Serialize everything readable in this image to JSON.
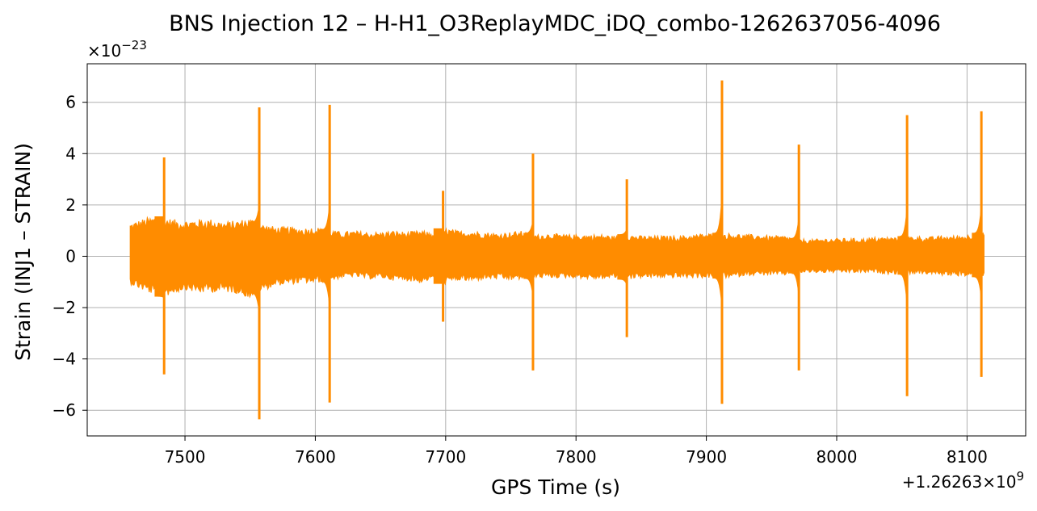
{
  "chart_data": {
    "type": "line",
    "title": "BNS Injection 12 – H-H1_O3ReplayMDC_iDQ_combo-1262637056-4096",
    "xlabel": "GPS Time (s)",
    "ylabel": "Strain (INJ1 – STRAIN)",
    "x_offset_label": "+1.26263×10^9",
    "y_scale_label": "×10^−23",
    "xlim": [
      7425,
      8145
    ],
    "ylim": [
      -7.0,
      7.5
    ],
    "xticks": [
      7500,
      7600,
      7700,
      7800,
      7900,
      8000,
      8100
    ],
    "xtick_labels": [
      "7500",
      "7600",
      "7700",
      "7800",
      "7900",
      "8000",
      "8100"
    ],
    "yticks": [
      -6,
      -4,
      -2,
      0,
      2,
      4,
      6
    ],
    "ytick_labels": [
      "−6",
      "−4",
      "−2",
      "0",
      "2",
      "4",
      "6"
    ],
    "grid": true,
    "series_color": "#ff8c00",
    "x_range": [
      7458,
      8113
    ],
    "envelope": {
      "x": [
        7458,
        7470,
        7480,
        7490,
        7500,
        7510,
        7520,
        7530,
        7540,
        7550,
        7560,
        7570,
        7580,
        7590,
        7600,
        7610,
        7620,
        7630,
        7640,
        7650,
        7660,
        7670,
        7680,
        7690,
        7700,
        7710,
        7720,
        7730,
        7740,
        7750,
        7760,
        7770,
        7780,
        7790,
        7800,
        7810,
        7820,
        7830,
        7840,
        7850,
        7860,
        7870,
        7880,
        7890,
        7900,
        7910,
        7920,
        7930,
        7940,
        7950,
        7960,
        7970,
        7980,
        7990,
        8000,
        8010,
        8020,
        8030,
        8040,
        8050,
        8060,
        8070,
        8080,
        8090,
        8100,
        8110,
        8113
      ],
      "upper": [
        1.3,
        1.5,
        1.6,
        1.45,
        1.4,
        1.45,
        1.45,
        1.35,
        1.4,
        1.5,
        1.25,
        1.15,
        1.15,
        1.1,
        1.15,
        1.05,
        0.95,
        1.0,
        0.95,
        0.95,
        1.0,
        0.95,
        1.0,
        0.95,
        1.1,
        1.0,
        1.0,
        0.95,
        0.9,
        0.95,
        1.0,
        0.85,
        0.9,
        0.85,
        0.85,
        0.85,
        0.85,
        0.8,
        0.85,
        0.8,
        0.8,
        0.8,
        0.8,
        0.85,
        0.9,
        0.9,
        0.9,
        0.85,
        0.85,
        0.8,
        0.8,
        0.7,
        0.65,
        0.7,
        0.7,
        0.7,
        0.7,
        0.75,
        0.75,
        0.75,
        0.8,
        0.75,
        0.8,
        0.8,
        0.85,
        0.9,
        0.9
      ],
      "lower": [
        -1.1,
        -1.4,
        -1.6,
        -1.5,
        -1.3,
        -1.45,
        -1.4,
        -1.4,
        -1.45,
        -1.65,
        -1.35,
        -1.15,
        -1.1,
        -1.05,
        -1.05,
        -1.0,
        -0.85,
        -0.8,
        -0.9,
        -0.85,
        -0.95,
        -0.95,
        -1.05,
        -0.9,
        -1.1,
        -0.95,
        -1.0,
        -0.9,
        -0.9,
        -0.95,
        -0.9,
        -0.85,
        -0.85,
        -0.85,
        -0.85,
        -0.9,
        -0.9,
        -0.85,
        -0.9,
        -0.85,
        -0.85,
        -0.85,
        -0.85,
        -0.85,
        -0.85,
        -0.85,
        -0.85,
        -0.75,
        -0.75,
        -0.75,
        -0.75,
        -0.65,
        -0.65,
        -0.65,
        -0.65,
        -0.65,
        -0.65,
        -0.65,
        -0.7,
        -0.7,
        -0.7,
        -0.7,
        -0.75,
        -0.75,
        -0.8,
        -0.8,
        -0.8
      ]
    },
    "spikes": [
      {
        "x": 7484,
        "max": 3.85,
        "min": -4.6
      },
      {
        "x": 7557,
        "max": 5.8,
        "min": -6.35
      },
      {
        "x": 7611,
        "max": 5.9,
        "min": -5.7
      },
      {
        "x": 7698,
        "max": 2.55,
        "min": -2.55
      },
      {
        "x": 7767,
        "max": 4.0,
        "min": -4.45
      },
      {
        "x": 7839,
        "max": 3.0,
        "min": -3.15
      },
      {
        "x": 7912,
        "max": 6.85,
        "min": -5.75
      },
      {
        "x": 7971,
        "max": 4.35,
        "min": -4.45
      },
      {
        "x": 8054,
        "max": 5.5,
        "min": -5.45
      },
      {
        "x": 8111,
        "max": 5.65,
        "min": -4.7
      }
    ]
  }
}
